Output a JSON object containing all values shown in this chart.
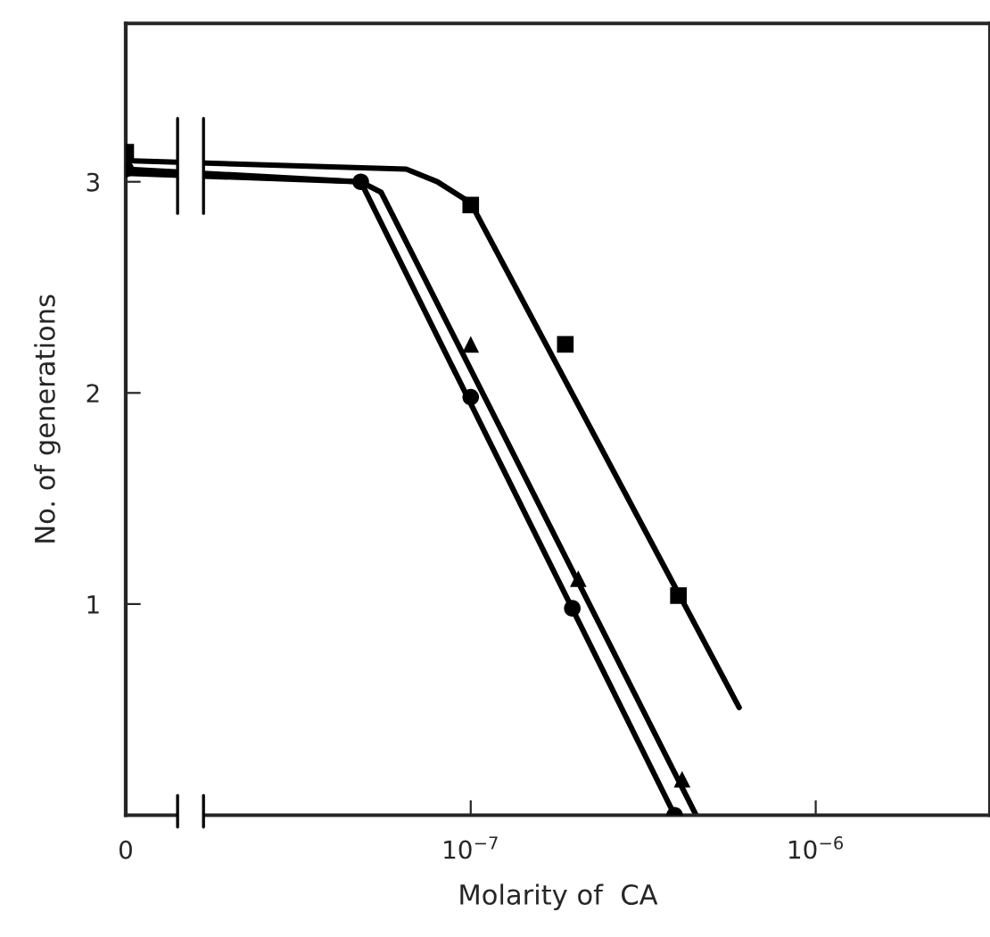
{
  "chart_data": {
    "type": "scatter",
    "xlabel": "Molarity of  CA",
    "ylabel": "No. of generations",
    "log": "x",
    "xlim": [
      1e-08,
      3.2e-06
    ],
    "ylim": [
      0,
      3.75
    ],
    "xticks": [
      {
        "value": 1e-08,
        "label": "0"
      },
      {
        "value": 1e-07,
        "label": "10$^{−7}$"
      },
      {
        "value": 1e-06,
        "label": "10$^{−6}$"
      }
    ],
    "yticks": [
      1,
      2,
      3
    ],
    "grid": false,
    "legend": false,
    "series": [
      {
        "marker": "square",
        "color": "#000000",
        "x": [
          1e-08,
          1e-07,
          1.88e-07,
          4e-07
        ],
        "values": [
          3.14,
          2.89,
          2.23,
          1.04
        ]
      },
      {
        "marker": "triangle",
        "color": "#000000",
        "x": [
          1e-07,
          2.05e-07,
          4.1e-07
        ],
        "values": [
          2.23,
          1.12,
          0.17
        ]
      },
      {
        "marker": "circle",
        "color": "#000000",
        "x": [
          1e-08,
          4.8e-08,
          1e-07,
          1.97e-07,
          3.9e-07
        ],
        "values": [
          3.06,
          3.0,
          1.98,
          0.98,
          0
        ]
      },
      {
        "type": "line",
        "marker": "none",
        "line_style": "solid",
        "color": "#000000",
        "x": [
          1e-08,
          6.5e-08,
          8e-08,
          1e-07,
          6e-07
        ],
        "values": [
          3.1,
          3.06,
          3.0,
          2.9,
          0.51
        ]
      },
      {
        "type": "line",
        "marker": "none",
        "line_style": "solid",
        "color": "#000000",
        "x": [
          1e-08,
          4.8e-08,
          5.5e-08,
          4.5e-07
        ],
        "values": [
          3.06,
          3.0,
          2.95,
          0
        ]
      },
      {
        "type": "line",
        "marker": "none",
        "line_style": "solid",
        "color": "#000000",
        "x": [
          1e-08,
          4.8e-08,
          3.9e-07
        ],
        "values": [
          3.04,
          3.0,
          0
        ]
      }
    ]
  }
}
